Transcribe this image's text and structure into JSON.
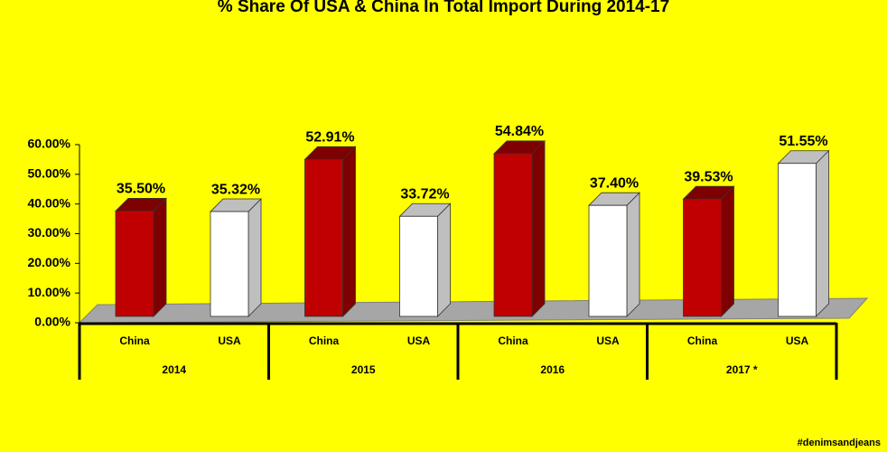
{
  "chart_data": {
    "type": "bar3d",
    "title": "% Share Of USA & China In Total Import During 2014-17",
    "categories": [
      "2014",
      "2015",
      "2016",
      "2017 *"
    ],
    "series": [
      {
        "name": "China",
        "color": "#c00000",
        "side": "#7f0000",
        "values": [
          35.5,
          52.91,
          54.84,
          39.53
        ],
        "value_labels": [
          "35.50%",
          "52.91%",
          "54.84%",
          "39.53%"
        ]
      },
      {
        "name": "USA",
        "color": "#ffffff",
        "side": "#bfbfbf",
        "values": [
          35.32,
          33.72,
          37.4,
          51.55
        ],
        "value_labels": [
          "35.32%",
          "33.72%",
          "37.40%",
          "51.55%"
        ]
      }
    ],
    "ylim": [
      0,
      60
    ],
    "yticks": [
      {
        "value": 0,
        "label": "0.00%"
      },
      {
        "value": 10,
        "label": "10.00%"
      },
      {
        "value": 20,
        "label": "20.00%"
      },
      {
        "value": 30,
        "label": "30.00%"
      },
      {
        "value": 40,
        "label": "40.00%"
      },
      {
        "value": 50,
        "label": "50.00%"
      },
      {
        "value": 60,
        "label": "60.00%"
      }
    ],
    "watermark": "#denimsandjeans"
  }
}
